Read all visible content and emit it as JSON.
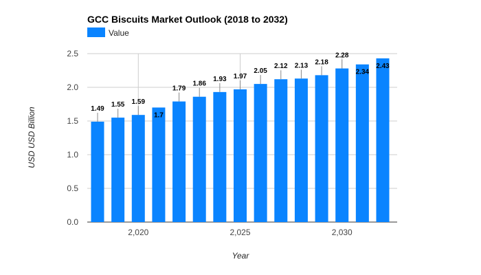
{
  "chart_data": {
    "type": "bar",
    "title": "GCC Biscuits Market Outlook (2018 to 2032)",
    "xlabel": "Year",
    "ylabel": "USD USD Billion",
    "legend": {
      "position": "top-left",
      "entries": [
        "Value"
      ]
    },
    "series": [
      {
        "name": "Value",
        "color": "#0a84ff",
        "x": [
          2018,
          2019,
          2020,
          2021,
          2022,
          2023,
          2024,
          2025,
          2026,
          2027,
          2028,
          2029,
          2030,
          2031,
          2032
        ],
        "values": [
          1.49,
          1.55,
          1.59,
          1.7,
          1.79,
          1.86,
          1.93,
          1.97,
          2.05,
          2.12,
          2.13,
          2.18,
          2.28,
          2.34,
          2.43
        ],
        "labels": [
          "1.49",
          "1.55",
          "1.59",
          "1.7",
          "1.79",
          "1.86",
          "1.93",
          "1.97",
          "2.05",
          "2.12",
          "2.13",
          "2.18",
          "2.28",
          "2.34",
          "2.43"
        ]
      }
    ],
    "ylim": [
      0,
      2.5
    ],
    "yticks": [
      0,
      0.5,
      1,
      1.5,
      2,
      2.5
    ],
    "ytick_labels": [
      "0.0",
      "0.5",
      "1.0",
      "1.5",
      "2.0",
      "2.5"
    ],
    "xticks": [
      2020,
      2025,
      2030
    ],
    "xtick_labels": [
      "2,020",
      "2,025",
      "2,030"
    ],
    "grid": true
  }
}
